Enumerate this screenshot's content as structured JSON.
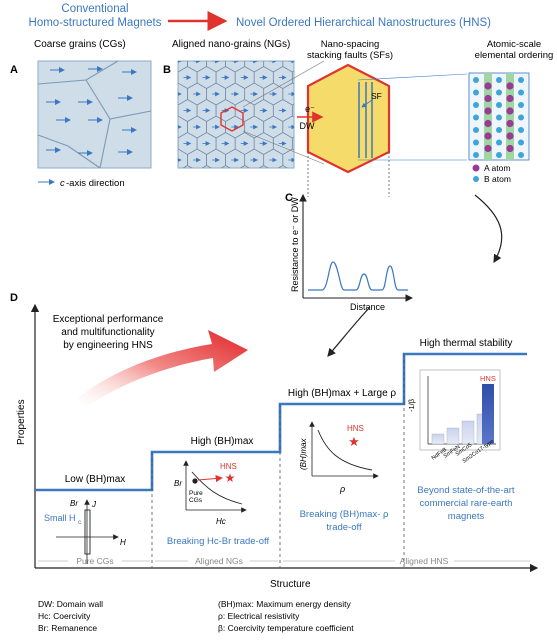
{
  "header": {
    "left_line1": "Conventional",
    "left_line2": "Homo-structured Magnets",
    "right": "Novel Ordered Hierarchical Nanostructures (HNS)"
  },
  "panel_letters": {
    "a": "A",
    "b": "B",
    "c": "C",
    "d": "D"
  },
  "panel_a": {
    "title": "Coarse grains (CGs)",
    "legend_prefix": "c",
    "legend_rest": "-axis direction"
  },
  "panel_b": {
    "title": "Aligned nano-grains (NGs)",
    "sf_title_1": "Nano-spacing",
    "sf_title_2": "stacking faults (SFs)",
    "sf_label": "SF",
    "probe_top": "e⁻",
    "probe_bottom": "DW",
    "atomic_title_1": "Atomic-scale",
    "atomic_title_2": "elemental ordering",
    "atom_a": "A atom",
    "atom_b": "B atom"
  },
  "panel_c": {
    "ylabel": "Resistance to e⁻ or DW",
    "xlabel": "Distance"
  },
  "panel_d": {
    "ylabel": "Properties",
    "xlabel": "Structure",
    "arrow_text_1": "Exceptional performance",
    "arrow_text_2": "and multifunctionality",
    "arrow_text_3": "by engineering HNS",
    "step1_label": "Low (BH)max",
    "step2_label": "High (BH)max",
    "step3_label": "High (BH)max + Large ρ",
    "step4_label": "High thermal stability",
    "step1_note_1": "Small H",
    "step1_note_sub": "c",
    "loop_br": "Br",
    "loop_j": "J",
    "loop_h": "H",
    "step2_caption": "Breaking Hc-Br trade-off",
    "inset2_hns": "HNS",
    "inset2_pure": "Pure",
    "inset2_cgs": "CGs",
    "inset2_y": "Br",
    "inset2_x": "Hc",
    "inset3_hns": "HNS",
    "inset3_y": "(BH)max",
    "inset3_x": "ρ",
    "step3_caption_1": "Breaking (BH)max- ρ",
    "step3_caption_2": "trade-off",
    "inset4_hns": "HNS",
    "inset4_y": "-1/β",
    "inset4_bars": [
      "NdFeB",
      "SmFeN",
      "SmCo5",
      "Sm2Co17-type"
    ],
    "step4_caption_1": "Beyond state-of-the-art",
    "step4_caption_2": "commercial  rare-earth",
    "step4_caption_3": "magnets",
    "axis_cat_1": "Pure CGs",
    "axis_cat_2": "Aligned NGs",
    "axis_cat_3": "Aligned HNS"
  },
  "footnotes": {
    "dw": "DW: Domain wall",
    "hc": "Hc: Coercivity",
    "br": "Br: Remanence",
    "bh": "(BH)max: Maximum energy density",
    "rho": "ρ: Electrical resistivity",
    "beta": "β: Coercivity temperature coefficient"
  },
  "colors": {
    "blue": "#3a78c2",
    "red": "#e0332d",
    "grain_fill": "#cfdde9",
    "grain_line": "#8faac4"
  }
}
